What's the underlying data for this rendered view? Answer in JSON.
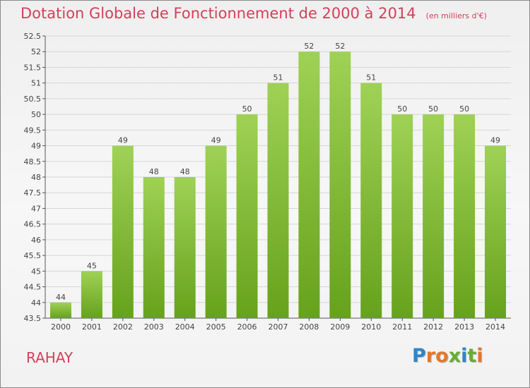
{
  "title": "Dotation Globale de Fonctionnement de 2000 à 2014",
  "subtitle": "(en milliers d'€)",
  "commune": "RAHAY",
  "logo": {
    "letters": [
      "P",
      "r",
      "o",
      "x",
      "i",
      "t",
      "i"
    ],
    "colors": [
      "#2e86c8",
      "#e2782a",
      "#e2782a",
      "#6aad2f",
      "#2e86c8",
      "#6aad2f",
      "#e2782a"
    ]
  },
  "colors": {
    "title": "#d1415a",
    "bar_light": "#9fd155",
    "bar_dark": "#66a21c"
  },
  "chart_data": {
    "type": "bar",
    "categories": [
      "2000",
      "2001",
      "2002",
      "2003",
      "2004",
      "2005",
      "2006",
      "2007",
      "2008",
      "2009",
      "2010",
      "2011",
      "2012",
      "2013",
      "2014"
    ],
    "values": [
      44,
      45,
      49,
      48,
      48,
      49,
      50,
      51,
      52,
      52,
      51,
      50,
      50,
      50,
      49
    ],
    "data_labels": [
      "44",
      "45",
      "49",
      "48",
      "48",
      "49",
      "50",
      "51",
      "52",
      "52",
      "51",
      "50",
      "50",
      "50",
      "49"
    ],
    "ylim": [
      43.5,
      52.5
    ],
    "yticks": [
      "43.5",
      "44",
      "44.5",
      "45",
      "45.5",
      "46",
      "46.5",
      "47",
      "47.5",
      "48",
      "48.5",
      "49",
      "49.5",
      "50",
      "50.5",
      "51",
      "51.5",
      "52",
      "52.5"
    ],
    "grid": true,
    "xlabel": "",
    "ylabel": ""
  }
}
